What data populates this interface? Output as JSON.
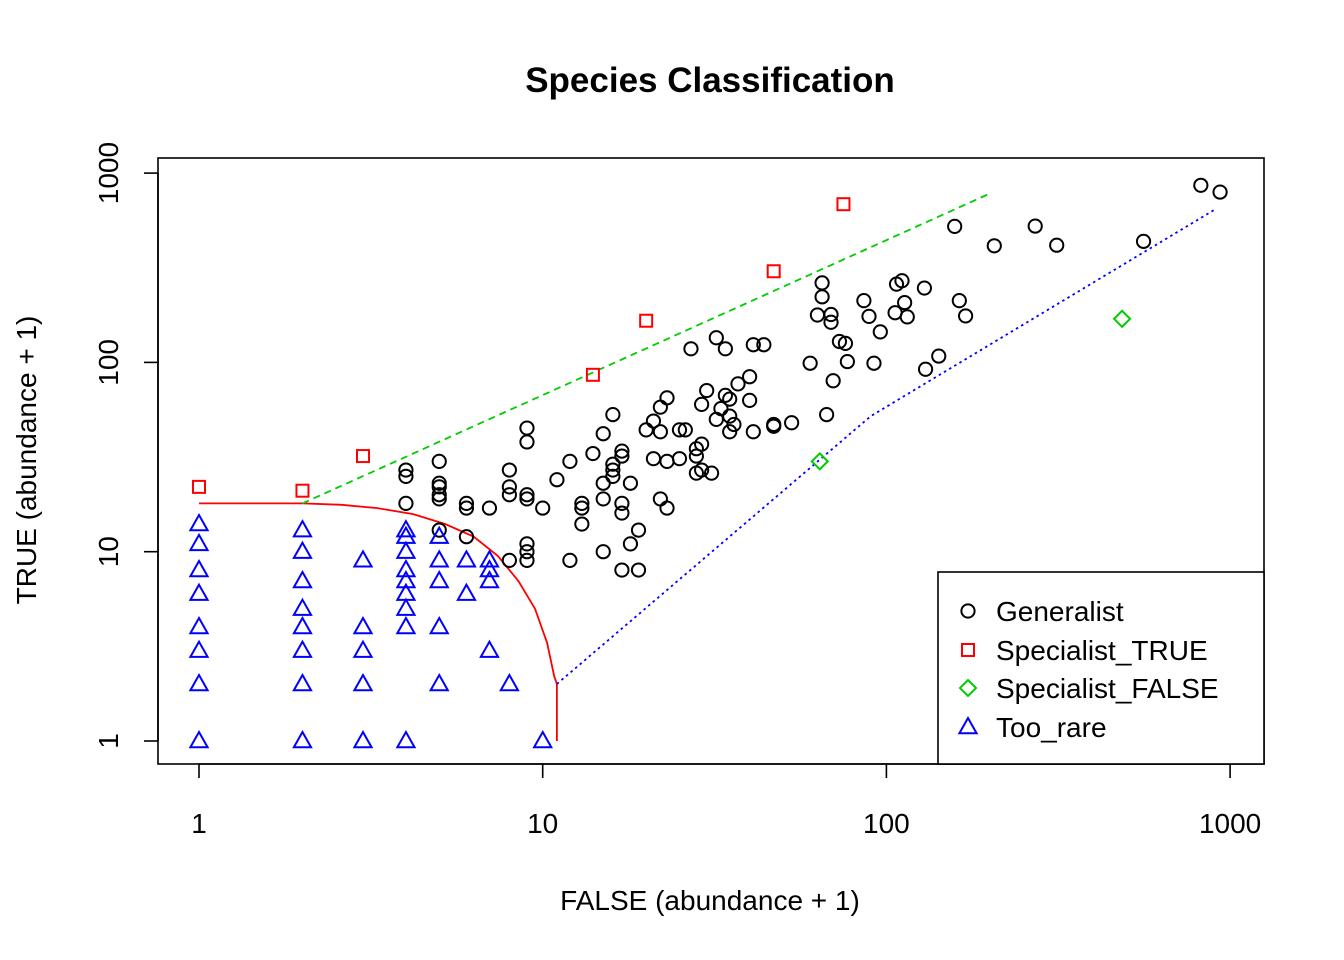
{
  "chart_data": {
    "type": "scatter",
    "title": "Species Classification",
    "xlabel": "FALSE (abundance + 1)",
    "ylabel": "TRUE (abundance + 1)",
    "x_scale": "log",
    "y_scale": "log",
    "xlim": [
      0.76,
      1250
    ],
    "ylim": [
      0.76,
      1220
    ],
    "x_ticks": [
      1,
      10,
      100,
      1000
    ],
    "x_tick_labels": [
      "1",
      "10",
      "100",
      "1000"
    ],
    "y_ticks": [
      1,
      10,
      100,
      1000
    ],
    "y_tick_labels": [
      "1",
      "10",
      "100",
      "1000"
    ],
    "grid": false,
    "legend_position": "bottom-right",
    "series": [
      {
        "name": "Generalist",
        "marker": "circle",
        "color": "#000000",
        "points": [
          [
            4,
            27
          ],
          [
            4,
            25
          ],
          [
            4,
            18
          ],
          [
            5,
            30
          ],
          [
            5,
            23
          ],
          [
            5,
            22
          ],
          [
            5,
            20
          ],
          [
            5,
            19
          ],
          [
            5,
            13
          ],
          [
            6,
            18
          ],
          [
            6,
            17
          ],
          [
            6,
            12
          ],
          [
            7,
            17
          ],
          [
            8,
            27
          ],
          [
            8,
            22
          ],
          [
            8,
            20
          ],
          [
            8,
            9
          ],
          [
            9,
            45
          ],
          [
            9,
            38
          ],
          [
            9,
            20
          ],
          [
            9,
            19
          ],
          [
            9,
            11
          ],
          [
            9,
            10
          ],
          [
            9,
            9
          ],
          [
            10,
            17
          ],
          [
            11,
            24
          ],
          [
            12,
            30
          ],
          [
            12,
            9
          ],
          [
            13,
            18
          ],
          [
            13,
            17
          ],
          [
            13,
            14
          ],
          [
            14,
            33
          ],
          [
            15,
            42
          ],
          [
            15,
            23
          ],
          [
            15,
            19
          ],
          [
            15,
            10
          ],
          [
            16,
            53
          ],
          [
            16,
            29
          ],
          [
            16,
            27
          ],
          [
            16,
            25
          ],
          [
            17,
            34
          ],
          [
            17,
            32
          ],
          [
            17,
            18
          ],
          [
            17,
            16
          ],
          [
            17,
            8
          ],
          [
            18,
            23
          ],
          [
            18,
            11
          ],
          [
            19,
            13
          ],
          [
            19,
            8
          ],
          [
            20,
            44
          ],
          [
            21,
            49
          ],
          [
            21,
            31
          ],
          [
            22,
            58
          ],
          [
            22,
            43
          ],
          [
            22,
            19
          ],
          [
            23,
            65
          ],
          [
            23,
            30
          ],
          [
            23,
            17
          ],
          [
            25,
            31
          ],
          [
            25,
            44
          ],
          [
            26,
            44
          ],
          [
            27,
            118
          ],
          [
            28,
            35
          ],
          [
            28,
            32
          ],
          [
            28,
            26
          ],
          [
            29,
            60
          ],
          [
            29,
            37
          ],
          [
            29,
            27
          ],
          [
            30,
            71
          ],
          [
            31,
            26
          ],
          [
            32,
            135
          ],
          [
            32,
            50
          ],
          [
            33,
            57
          ],
          [
            34,
            118
          ],
          [
            34,
            67
          ],
          [
            35,
            64
          ],
          [
            35,
            52
          ],
          [
            35,
            43
          ],
          [
            36,
            47
          ],
          [
            37,
            77
          ],
          [
            40,
            84
          ],
          [
            40,
            63
          ],
          [
            41,
            43
          ],
          [
            41,
            124
          ],
          [
            44,
            124
          ],
          [
            47,
            47
          ],
          [
            47,
            46
          ],
          [
            53,
            48
          ],
          [
            60,
            99
          ],
          [
            63,
            178
          ],
          [
            65,
            263
          ],
          [
            65,
            222
          ],
          [
            67,
            53
          ],
          [
            69,
            179
          ],
          [
            69,
            163
          ],
          [
            70,
            80
          ],
          [
            73,
            129
          ],
          [
            76,
            126
          ],
          [
            77,
            101
          ],
          [
            86,
            212
          ],
          [
            89,
            175
          ],
          [
            92,
            99
          ],
          [
            96,
            145
          ],
          [
            106,
            183
          ],
          [
            107,
            259
          ],
          [
            111,
            270
          ],
          [
            113,
            207
          ],
          [
            115,
            174
          ],
          [
            129,
            247
          ],
          [
            130,
            92
          ],
          [
            142,
            108
          ],
          [
            158,
            523
          ],
          [
            163,
            212
          ],
          [
            170,
            176
          ],
          [
            206,
            413
          ],
          [
            271,
            525
          ],
          [
            313,
            416
          ],
          [
            560,
            436
          ],
          [
            822,
            862
          ],
          [
            935,
            794
          ]
        ]
      },
      {
        "name": "Specialist_TRUE",
        "marker": "square",
        "color": "#ff0000",
        "points": [
          [
            1,
            22
          ],
          [
            2,
            21
          ],
          [
            3,
            32
          ],
          [
            14,
            86
          ],
          [
            20,
            166
          ],
          [
            47,
            303
          ],
          [
            75,
            685
          ]
        ]
      },
      {
        "name": "Specialist_FALSE",
        "marker": "diamond",
        "color": "#00cd00",
        "points": [
          [
            64,
            30
          ],
          [
            485,
            170
          ]
        ]
      },
      {
        "name": "Too_rare",
        "marker": "triangle",
        "color": "#0000ff",
        "points": [
          [
            1,
            1
          ],
          [
            1,
            2
          ],
          [
            1,
            3
          ],
          [
            1,
            4
          ],
          [
            1,
            6
          ],
          [
            1,
            8
          ],
          [
            1,
            11
          ],
          [
            1,
            14
          ],
          [
            2,
            1
          ],
          [
            2,
            2
          ],
          [
            2,
            3
          ],
          [
            2,
            4
          ],
          [
            2,
            5
          ],
          [
            2,
            7
          ],
          [
            2,
            10
          ],
          [
            2,
            13
          ],
          [
            3,
            1
          ],
          [
            3,
            2
          ],
          [
            3,
            3
          ],
          [
            3,
            4
          ],
          [
            3,
            9
          ],
          [
            4,
            1
          ],
          [
            4,
            4
          ],
          [
            4,
            5
          ],
          [
            4,
            6
          ],
          [
            4,
            7
          ],
          [
            4,
            8
          ],
          [
            4,
            10
          ],
          [
            4,
            12
          ],
          [
            4,
            13
          ],
          [
            5,
            2
          ],
          [
            5,
            4
          ],
          [
            5,
            7
          ],
          [
            5,
            9
          ],
          [
            5,
            12
          ],
          [
            6,
            6
          ],
          [
            6,
            9
          ],
          [
            7,
            3
          ],
          [
            7,
            7
          ],
          [
            7,
            8
          ],
          [
            7,
            9
          ],
          [
            8,
            2
          ],
          [
            10,
            1
          ]
        ]
      }
    ],
    "lines": [
      {
        "id": "rarity-threshold-curve",
        "color": "#ff0000",
        "style": "solid",
        "points": [
          [
            1,
            18
          ],
          [
            2,
            18
          ],
          [
            2.6,
            17.7
          ],
          [
            3.3,
            17
          ],
          [
            4.2,
            15.8
          ],
          [
            5.2,
            14
          ],
          [
            6.3,
            12
          ],
          [
            7.4,
            9.5
          ],
          [
            8.5,
            7
          ],
          [
            9.5,
            5
          ],
          [
            10.3,
            3.3
          ],
          [
            10.8,
            2.2
          ],
          [
            11,
            2
          ],
          [
            11,
            1
          ]
        ]
      },
      {
        "id": "specialist-true-boundary",
        "color": "#00cd00",
        "style": "dashed",
        "points": [
          [
            2,
            18
          ],
          [
            200,
            780
          ]
        ]
      },
      {
        "id": "specialist-false-boundary",
        "color": "#0000ff",
        "style": "dotted",
        "points": [
          [
            11,
            2
          ],
          [
            90,
            52
          ],
          [
            900,
            640
          ]
        ]
      }
    ]
  }
}
